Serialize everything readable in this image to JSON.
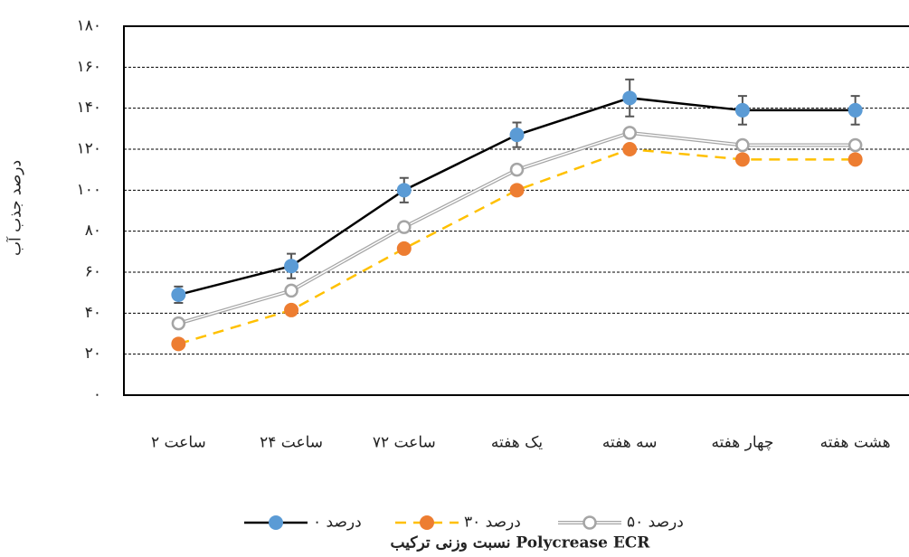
{
  "chart_data": {
    "type": "line",
    "y_label": "درصد جذب آب",
    "x_label": "نسبت وزنی ترکیب Polycrease ECR",
    "categories": [
      "۲ ساعت",
      "۲۴ ساعت",
      "۷۲ ساعت",
      "یک هفته",
      "سه هفته",
      "چهار هفته",
      "هشت هفته"
    ],
    "series": [
      {
        "name": "۰ درصد",
        "color": "#5b9bd5",
        "line_color": "#000000",
        "values": [
          49,
          63,
          100,
          127,
          145,
          139,
          139
        ],
        "errors": [
          4,
          6,
          6,
          6,
          9,
          7,
          7
        ]
      },
      {
        "name": "۳۰ درصد",
        "color": "#ed7d31",
        "line_color": "#ffc000",
        "dashed": true,
        "values": [
          25,
          41.5,
          71.5,
          100,
          120,
          115,
          115
        ]
      },
      {
        "name": "۵۰ درصد",
        "color": "#a5a5a5",
        "line_color": "#a5a5a5",
        "hollow": true,
        "values": [
          35,
          51,
          82,
          110,
          128,
          122,
          122
        ]
      }
    ],
    "ylim": [
      0,
      180
    ],
    "yticks": [
      {
        "value": 0,
        "label": "۰"
      },
      {
        "value": 20,
        "label": "۲۰"
      },
      {
        "value": 40,
        "label": "۴۰"
      },
      {
        "value": 60,
        "label": "۶۰"
      },
      {
        "value": 80,
        "label": "۸۰"
      },
      {
        "value": 100,
        "label": "۱۰۰"
      },
      {
        "value": 120,
        "label": "۱۲۰"
      },
      {
        "value": 140,
        "label": "۱۴۰"
      },
      {
        "value": 160,
        "label": "۱۶۰"
      },
      {
        "value": 180,
        "label": "۱۸۰"
      }
    ],
    "grid": true
  }
}
